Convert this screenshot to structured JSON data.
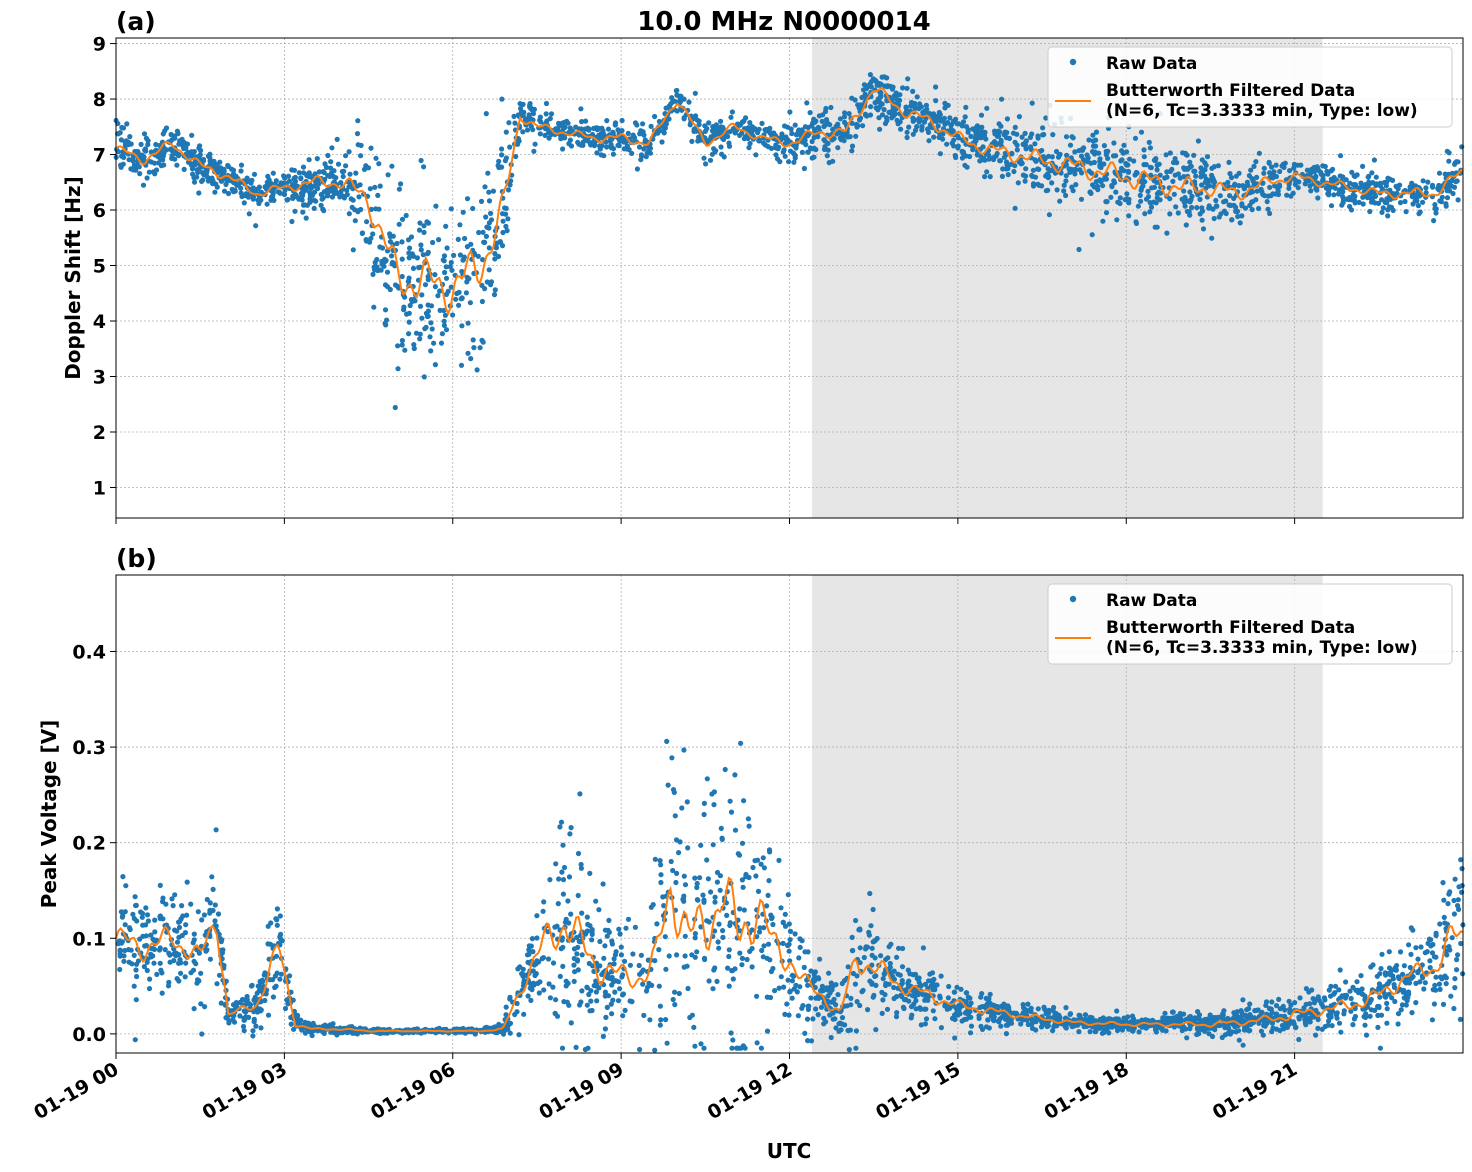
{
  "chart_data": [
    {
      "type": "scatter",
      "panel_label": "(a)",
      "title": "10.0 MHz N0000014",
      "xlabel": "",
      "ylabel": "Doppler Shift [Hz]",
      "xlim_hours": [
        0,
        24
      ],
      "ylim": [
        0.45,
        9.1
      ],
      "yticks": [
        1,
        2,
        3,
        4,
        5,
        6,
        7,
        8,
        9
      ],
      "grid": true,
      "legend_position": "top-right",
      "shaded_interval_hours": [
        12.4,
        21.5
      ],
      "series": [
        {
          "name": "Raw Data",
          "style": "dots",
          "color": "#1f77b4",
          "x": [
            0,
            0.5,
            1.0,
            1.5,
            2.0,
            2.5,
            3.0,
            3.5,
            4.0,
            4.5,
            5.0,
            5.5,
            6.0,
            6.5,
            6.9,
            7.2,
            7.5,
            8.0,
            8.5,
            9.0,
            9.5,
            10.0,
            10.5,
            11.0,
            11.5,
            12.0,
            12.5,
            13.0,
            13.5,
            14.0,
            14.5,
            15.0,
            15.5,
            16.0,
            16.5,
            17.0,
            17.5,
            18.0,
            18.5,
            19.0,
            19.5,
            20.0,
            20.5,
            21.0,
            21.5,
            22.0,
            22.5,
            23.0,
            23.5,
            24.0
          ],
          "y": [
            7.1,
            6.9,
            7.2,
            6.8,
            6.6,
            6.3,
            6.4,
            6.5,
            6.5,
            6.2,
            4.8,
            4.7,
            4.6,
            5.0,
            6.0,
            7.7,
            7.5,
            7.4,
            7.3,
            7.3,
            7.2,
            8.0,
            7.2,
            7.5,
            7.3,
            7.2,
            7.4,
            7.4,
            8.2,
            7.8,
            7.6,
            7.3,
            7.1,
            7.0,
            6.9,
            6.8,
            6.7,
            6.6,
            6.5,
            6.4,
            6.4,
            6.3,
            6.5,
            6.6,
            6.5,
            6.4,
            6.3,
            6.3,
            6.3,
            6.7
          ],
          "spread": [
            0.35,
            0.3,
            0.35,
            0.3,
            0.3,
            0.3,
            0.3,
            0.4,
            0.5,
            0.9,
            1.5,
            1.6,
            1.6,
            1.5,
            1.2,
            0.3,
            0.3,
            0.25,
            0.25,
            0.3,
            0.3,
            0.3,
            0.3,
            0.25,
            0.25,
            0.3,
            0.35,
            0.4,
            0.4,
            0.4,
            0.4,
            0.4,
            0.45,
            0.55,
            0.6,
            0.65,
            0.7,
            0.75,
            0.75,
            0.7,
            0.6,
            0.5,
            0.35,
            0.3,
            0.3,
            0.3,
            0.3,
            0.35,
            0.35,
            0.4
          ]
        },
        {
          "name": "Butterworth Filtered Data\n(N=6, Tc=3.3333 min, Type: low)",
          "style": "line",
          "color": "#ff7f0e"
        }
      ]
    },
    {
      "type": "scatter",
      "panel_label": "(b)",
      "title": "",
      "xlabel": "UTC",
      "ylabel": "Peak Voltage [V]",
      "xlim_hours": [
        0,
        24
      ],
      "ylim": [
        -0.02,
        0.48
      ],
      "yticks": [
        0.0,
        0.1,
        0.2,
        0.3,
        0.4
      ],
      "xtick_labels": [
        "01-19 00",
        "01-19 03",
        "01-19 06",
        "01-19 09",
        "01-19 12",
        "01-19 15",
        "01-19 18",
        "01-19 21"
      ],
      "xtick_hours": [
        0,
        3,
        6,
        9,
        12,
        15,
        18,
        21
      ],
      "grid": true,
      "legend_position": "top-right",
      "shaded_interval_hours": [
        12.4,
        21.5
      ],
      "series": [
        {
          "name": "Raw Data",
          "style": "dots",
          "color": "#1f77b4",
          "x": [
            0,
            0.5,
            1.0,
            1.5,
            1.8,
            2.0,
            2.5,
            2.9,
            3.2,
            3.5,
            4.0,
            4.5,
            5.0,
            5.5,
            6.0,
            6.5,
            6.9,
            7.3,
            7.6,
            8.0,
            8.3,
            8.6,
            9.0,
            9.3,
            9.6,
            9.9,
            10.2,
            10.5,
            10.8,
            11.1,
            11.4,
            11.7,
            12.0,
            12.3,
            12.6,
            12.9,
            13.2,
            13.5,
            14.0,
            14.5,
            15.0,
            16.0,
            17.0,
            18.0,
            19.0,
            19.5,
            20.0,
            20.5,
            21.0,
            21.5,
            22.0,
            22.5,
            23.0,
            23.5,
            23.8,
            24.0
          ],
          "y": [
            0.1,
            0.09,
            0.1,
            0.08,
            0.12,
            0.02,
            0.03,
            0.09,
            0.01,
            0.005,
            0.005,
            0.003,
            0.003,
            0.003,
            0.003,
            0.003,
            0.005,
            0.06,
            0.09,
            0.12,
            0.09,
            0.07,
            0.06,
            0.06,
            0.07,
            0.16,
            0.1,
            0.11,
            0.15,
            0.1,
            0.14,
            0.09,
            0.08,
            0.05,
            0.04,
            0.02,
            0.08,
            0.07,
            0.05,
            0.04,
            0.03,
            0.02,
            0.012,
            0.01,
            0.01,
            0.01,
            0.012,
            0.015,
            0.02,
            0.025,
            0.03,
            0.04,
            0.06,
            0.07,
            0.1,
            0.1
          ],
          "spread": [
            0.05,
            0.05,
            0.05,
            0.04,
            0.07,
            0.01,
            0.02,
            0.05,
            0.008,
            0.004,
            0.004,
            0.002,
            0.002,
            0.002,
            0.002,
            0.002,
            0.004,
            0.04,
            0.07,
            0.1,
            0.09,
            0.06,
            0.05,
            0.05,
            0.08,
            0.14,
            0.12,
            0.12,
            0.14,
            0.12,
            0.14,
            0.08,
            0.06,
            0.04,
            0.03,
            0.02,
            0.06,
            0.05,
            0.03,
            0.025,
            0.02,
            0.012,
            0.008,
            0.007,
            0.008,
            0.01,
            0.012,
            0.015,
            0.02,
            0.02,
            0.025,
            0.03,
            0.035,
            0.04,
            0.07,
            0.07
          ]
        },
        {
          "name": "Butterworth Filtered Data\n(N=6, Tc=3.3333 min, Type: low)",
          "style": "line",
          "color": "#ff7f0e"
        }
      ]
    }
  ]
}
